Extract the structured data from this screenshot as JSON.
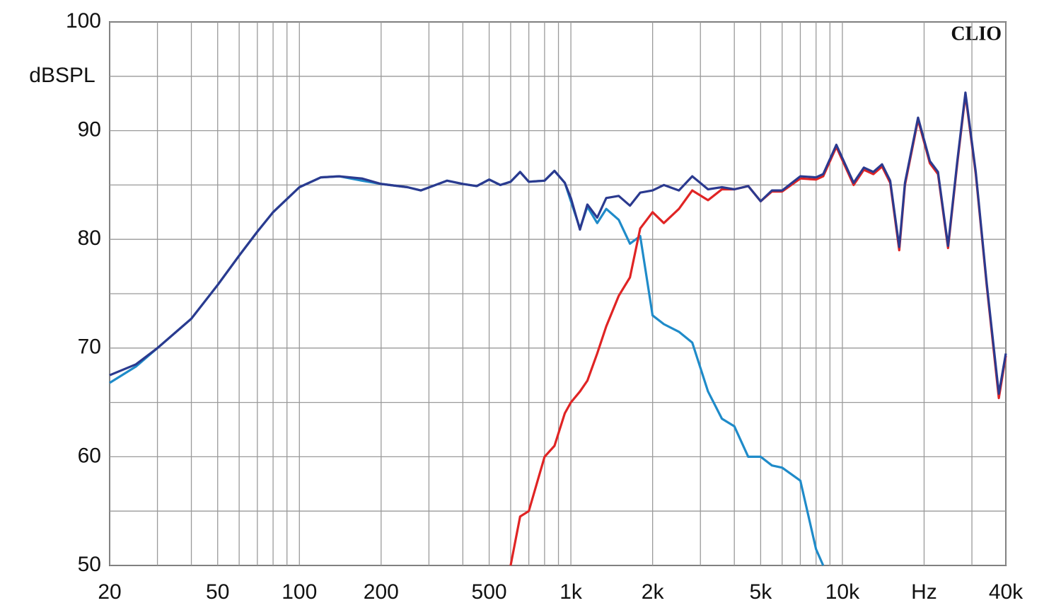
{
  "chart_data": {
    "type": "line",
    "annotation": "CLIO",
    "ylabel": "dBSPL",
    "xscale": "log",
    "grid": true,
    "xlim": [
      20,
      40000
    ],
    "ylim": [
      50,
      100
    ],
    "xticks": [
      20,
      50,
      100,
      200,
      500,
      {
        "value": 1000,
        "label": "1k"
      },
      {
        "value": 2000,
        "label": "2k"
      },
      {
        "value": 5000,
        "label": "5k"
      },
      {
        "value": 10000,
        "label": "10k"
      },
      {
        "value": 20000,
        "label": "Hz"
      },
      {
        "value": 40000,
        "label": "40k"
      }
    ],
    "xminor": [
      30,
      40,
      60,
      70,
      80,
      90,
      300,
      400,
      600,
      700,
      800,
      900,
      3000,
      4000,
      6000,
      7000,
      8000,
      9000,
      30000
    ],
    "yticks": [
      50,
      60,
      70,
      80,
      90,
      100
    ],
    "yminor": [
      55,
      65,
      75,
      85,
      95
    ],
    "x": [
      20,
      25,
      30,
      40,
      50,
      60,
      70,
      80,
      100,
      120,
      140,
      170,
      200,
      250,
      280,
      350,
      400,
      450,
      500,
      550,
      600,
      650,
      700,
      800,
      870,
      950,
      1000,
      1080,
      1150,
      1250,
      1350,
      1500,
      1650,
      1800,
      2000,
      2200,
      2500,
      2800,
      3200,
      3600,
      4000,
      4500,
      5000,
      5500,
      6000,
      7000,
      8000,
      8500,
      9500,
      11000,
      12000,
      13000,
      14000,
      15000,
      16200,
      17000,
      19000,
      21000,
      22500,
      24500,
      26500,
      28400,
      31000,
      34000,
      37700,
      40000
    ],
    "series": [
      {
        "color": "#1f8bc9",
        "values": [
          66.8,
          68.3,
          70,
          72.7,
          75.8,
          78.5,
          80.7,
          82.5,
          84.8,
          85.7,
          85.8,
          85.4,
          85.1,
          84.8,
          84.5,
          85.4,
          85.1,
          84.9,
          85.5,
          85.0,
          85.3,
          86.2,
          85.3,
          85.4,
          86.3,
          85.2,
          83.5,
          81.0,
          83.0,
          81.5,
          82.8,
          81.8,
          79.6,
          80.3,
          73.0,
          72.2,
          71.5,
          70.5,
          66.0,
          63.5,
          62.8,
          60.0,
          60.0,
          59.2,
          59.0,
          57.8,
          51.5,
          50.0,
          null,
          null,
          null,
          null,
          null,
          null,
          null,
          null,
          null,
          null,
          null,
          null,
          null,
          null,
          null,
          null,
          null,
          null
        ]
      },
      {
        "color": "#e02424",
        "values": [
          null,
          null,
          null,
          null,
          null,
          null,
          null,
          null,
          null,
          null,
          null,
          null,
          null,
          null,
          null,
          null,
          null,
          null,
          null,
          null,
          50,
          54.5,
          55,
          60,
          61,
          64,
          65,
          66,
          67,
          69.5,
          72,
          74.8,
          76.5,
          81,
          82.5,
          81.5,
          82.8,
          84.5,
          83.6,
          84.6,
          84.6,
          84.9,
          83.5,
          84.4,
          84.4,
          85.6,
          85.5,
          85.8,
          88.5,
          85.0,
          86.4,
          86.0,
          86.7,
          85.2,
          79.0,
          85.0,
          91.0,
          87.0,
          86.0,
          79.2,
          87.0,
          93.3,
          86.0,
          75.8,
          65.4,
          69.3
        ]
      },
      {
        "color": "#2b3a8f",
        "values": [
          67.5,
          68.5,
          70,
          72.7,
          75.8,
          78.5,
          80.7,
          82.5,
          84.8,
          85.7,
          85.8,
          85.6,
          85.1,
          84.8,
          84.5,
          85.4,
          85.1,
          84.9,
          85.5,
          85.0,
          85.3,
          86.2,
          85.3,
          85.4,
          86.3,
          85.2,
          83.8,
          80.9,
          83.2,
          82.0,
          83.8,
          84.0,
          83.1,
          84.3,
          84.5,
          85.0,
          84.5,
          85.8,
          84.6,
          84.8,
          84.6,
          84.9,
          83.5,
          84.5,
          84.5,
          85.8,
          85.7,
          86.0,
          88.7,
          85.2,
          86.6,
          86.2,
          86.9,
          85.4,
          79.3,
          85.2,
          91.2,
          87.2,
          86.2,
          79.4,
          87.2,
          93.5,
          86.2,
          76.0,
          65.8,
          69.5
        ]
      }
    ]
  }
}
